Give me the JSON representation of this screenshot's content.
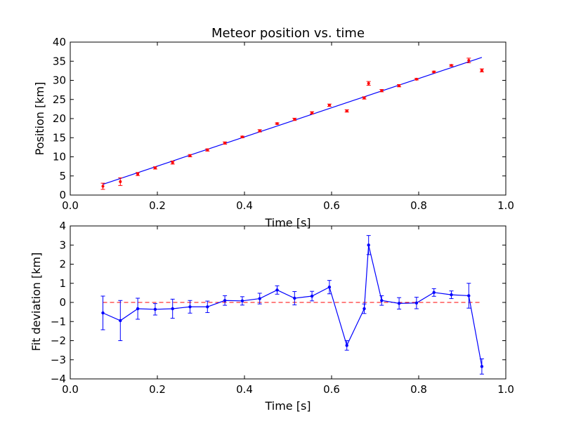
{
  "chart_data": [
    {
      "type": "scatter",
      "title": "Meteor position vs. time",
      "xlabel": "Time [s]",
      "ylabel": "Position [km]",
      "xlim": [
        0.0,
        1.0
      ],
      "ylim": [
        0,
        40
      ],
      "xticks": [
        "0.0",
        "0.2",
        "0.4",
        "0.6",
        "0.8",
        "1.0"
      ],
      "yticks": [
        "0",
        "5",
        "10",
        "15",
        "20",
        "25",
        "30",
        "35",
        "40"
      ],
      "grid": false,
      "colors": {
        "points": "#ff0000",
        "fit": "#0000ff"
      },
      "x": [
        0.075,
        0.115,
        0.155,
        0.195,
        0.235,
        0.275,
        0.315,
        0.355,
        0.395,
        0.435,
        0.475,
        0.515,
        0.555,
        0.595,
        0.635,
        0.675,
        0.685,
        0.715,
        0.755,
        0.795,
        0.835,
        0.875,
        0.915,
        0.945
      ],
      "y": [
        2.3,
        3.5,
        5.5,
        7.1,
        8.5,
        10.3,
        11.8,
        13.6,
        15.2,
        16.8,
        18.7,
        19.8,
        21.5,
        23.5,
        22.0,
        25.4,
        29.2,
        27.3,
        28.6,
        30.3,
        32.2,
        33.9,
        35.2,
        32.6
      ],
      "yerr": [
        0.8,
        1.0,
        0.4,
        0.3,
        0.4,
        0.3,
        0.3,
        0.3,
        0.2,
        0.3,
        0.2,
        0.3,
        0.3,
        0.3,
        0.3,
        0.3,
        0.5,
        0.3,
        0.3,
        0.2,
        0.2,
        0.2,
        0.6,
        0.4
      ],
      "fit": {
        "x": [
          0.075,
          0.945
        ],
        "y": [
          2.8,
          36.0
        ]
      }
    },
    {
      "type": "line",
      "title": "",
      "xlabel": "Time [s]",
      "ylabel": "Fit deviation [km]",
      "xlim": [
        0.0,
        1.0
      ],
      "ylim": [
        -4,
        4
      ],
      "xticks": [
        "0.0",
        "0.2",
        "0.4",
        "0.6",
        "0.8",
        "1.0"
      ],
      "yticks": [
        "−4",
        "−3",
        "−2",
        "−1",
        "0",
        "1",
        "2",
        "3",
        "4"
      ],
      "grid": false,
      "colors": {
        "line": "#0000ff",
        "reference": "#ff0000"
      },
      "x": [
        0.075,
        0.115,
        0.155,
        0.195,
        0.235,
        0.275,
        0.315,
        0.355,
        0.395,
        0.435,
        0.475,
        0.515,
        0.555,
        0.595,
        0.635,
        0.675,
        0.685,
        0.715,
        0.755,
        0.795,
        0.835,
        0.875,
        0.915,
        0.945
      ],
      "y": [
        -0.55,
        -0.95,
        -0.33,
        -0.36,
        -0.33,
        -0.23,
        -0.23,
        0.1,
        0.08,
        0.2,
        0.65,
        0.22,
        0.33,
        0.8,
        -2.25,
        -0.33,
        3.0,
        0.1,
        -0.05,
        -0.03,
        0.52,
        0.4,
        0.35,
        -3.35
      ],
      "yerr": [
        0.88,
        1.05,
        0.55,
        0.3,
        0.5,
        0.33,
        0.3,
        0.25,
        0.22,
        0.28,
        0.22,
        0.35,
        0.25,
        0.35,
        0.25,
        0.25,
        0.5,
        0.25,
        0.3,
        0.3,
        0.2,
        0.2,
        0.65,
        0.4
      ],
      "reference_y": 0
    }
  ]
}
